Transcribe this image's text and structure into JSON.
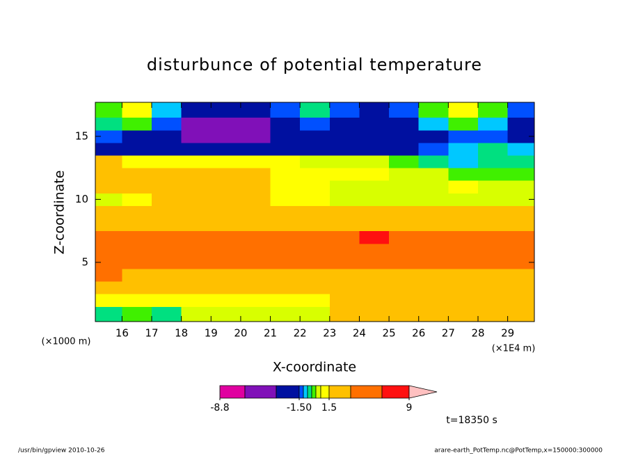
{
  "chart_data": {
    "type": "contour",
    "title": "disturbunce of potential temperature",
    "x_label": "X-coordinate",
    "y_label": "Z-coordinate",
    "x_unit_label": "(×1E4 m)",
    "y_unit_label": "(×1000 m)",
    "xlim": [
      15.1,
      29.9
    ],
    "ylim": [
      0.3,
      17.7
    ],
    "xticks": [
      16,
      17,
      18,
      19,
      20,
      21,
      22,
      23,
      24,
      25,
      26,
      27,
      28,
      29
    ],
    "yticks": [
      5,
      10,
      15
    ],
    "x": [
      15.5,
      16.5,
      17.5,
      18.5,
      19.5,
      20.5,
      21.5,
      22.5,
      23.5,
      24.5,
      25.5,
      26.5,
      27.5,
      28.5,
      29.5
    ],
    "y": [
      1,
      2,
      3,
      4,
      5,
      6,
      7,
      8,
      9,
      10,
      11,
      12,
      13,
      14,
      15,
      16,
      17
    ],
    "z": [
      [
        -0.3,
        0.3,
        -0.3,
        0.8,
        0.8,
        0.8,
        0.8,
        0.8,
        2,
        2,
        2,
        2,
        2,
        2,
        2
      ],
      [
        1.3,
        1.3,
        1.3,
        1.3,
        1.3,
        1.3,
        1.3,
        1.3,
        2.5,
        2.5,
        2.5,
        2.5,
        2.5,
        2.5,
        2.5
      ],
      [
        2.5,
        2.5,
        2.5,
        2.5,
        2.5,
        2.5,
        2.5,
        2.5,
        2.5,
        2.5,
        2.5,
        2.5,
        2.5,
        2.5,
        2.5
      ],
      [
        5,
        3,
        3,
        3,
        3,
        3,
        3,
        3,
        3,
        3,
        3,
        3,
        3,
        3,
        3
      ],
      [
        5,
        5,
        5,
        5,
        5,
        5,
        5,
        5,
        5,
        5,
        5,
        5,
        5,
        5,
        5
      ],
      [
        5,
        5,
        5,
        5,
        5,
        5,
        5,
        5,
        5,
        5,
        5,
        5,
        5,
        5,
        5
      ],
      [
        5,
        5,
        5,
        5,
        5,
        5,
        5,
        5,
        5,
        7,
        5,
        5,
        5,
        5,
        5
      ],
      [
        3,
        3,
        3,
        3,
        3,
        3,
        3,
        3,
        3,
        3,
        3,
        3,
        3,
        3,
        3
      ],
      [
        2.5,
        2.5,
        2.5,
        2.5,
        2.5,
        2.5,
        2.5,
        2.5,
        2.5,
        2.5,
        2.5,
        2.5,
        2.5,
        2.5,
        2.5
      ],
      [
        0.8,
        1.3,
        2.5,
        2.5,
        2.5,
        2.5,
        1.3,
        1.3,
        0.8,
        0.8,
        0.8,
        0.8,
        0.8,
        0.8,
        0.8
      ],
      [
        2.5,
        2.5,
        2.5,
        2.5,
        2.5,
        2.5,
        1.3,
        1.3,
        0.8,
        0.8,
        0.8,
        0.8,
        1.3,
        0.8,
        0.8
      ],
      [
        2.5,
        2.5,
        2.5,
        2.5,
        2.5,
        2.5,
        1.3,
        1.3,
        1.3,
        1.3,
        0.8,
        0.8,
        0.3,
        0.3,
        0.3
      ],
      [
        2,
        1.3,
        1.3,
        1.3,
        1.3,
        1.3,
        1.3,
        0.8,
        0.8,
        0.8,
        0.3,
        -0.3,
        -0.7,
        -0.3,
        -0.3
      ],
      [
        -2,
        -2,
        -2,
        -2,
        -2,
        -2,
        -2,
        -2,
        -2,
        -2,
        -2,
        -1.2,
        -0.7,
        -0.3,
        -0.7
      ],
      [
        -1.2,
        -2,
        -2,
        -5,
        -5,
        -5,
        -2,
        -2,
        -2,
        -2,
        -2,
        -2,
        -1.2,
        -1.2,
        -2
      ],
      [
        -0.3,
        0.3,
        -1.2,
        -5,
        -5,
        -5,
        -2,
        -1.2,
        -2,
        -2,
        -2,
        -0.7,
        0.3,
        -0.7,
        -2
      ],
      [
        0.3,
        1.2,
        -0.7,
        -2,
        -2,
        -2,
        -1.2,
        -0.3,
        -1.2,
        -2,
        -1.2,
        0.3,
        1.2,
        0.3,
        -1.2
      ]
    ],
    "colorbar": {
      "levels": [
        -8.8,
        -6,
        -3,
        -1.5,
        -1.0,
        -0.5,
        0,
        0.5,
        1.0,
        1.5,
        4,
        6.5,
        9
      ],
      "colors": [
        "#e000a0",
        "#8010b8",
        "#0010a0",
        "#0050ff",
        "#00c8ff",
        "#00e080",
        "#40f000",
        "#d8ff00",
        "#ffff00",
        "#ffc000",
        "#ff7000",
        "#ff1010",
        "#ff8080"
      ],
      "extend_color": "#ffc0c0",
      "ticks": [
        -8.8,
        {
          "value": -1.5,
          "label": "-1.50"
        },
        1.5,
        9
      ]
    },
    "annotation": "t=18350 s",
    "footer_left": "/usr/bin/gpview  2010-10-26",
    "footer_right": "arare-earth_PotTemp.nc@PotTemp,x=150000:300000"
  }
}
